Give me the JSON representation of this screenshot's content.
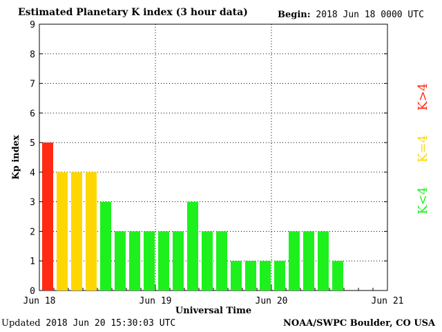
{
  "header": {
    "title": "Estimated Planetary K index (3 hour data)",
    "begin_label": "Begin:",
    "begin_value": "2018 Jun 18 0000 UTC"
  },
  "footer": {
    "updated_label": "Updated",
    "updated_value": "2018 Jun 20 15:30:03 UTC",
    "source": "NOAA/SWPC Boulder, CO USA"
  },
  "colors": {
    "high": "#ff2a14",
    "medium": "#ffd700",
    "low": "#1ef01e"
  },
  "chart_data": {
    "type": "bar",
    "xlabel": "Universal Time",
    "ylabel": "Kp index",
    "ylim": [
      0,
      9
    ],
    "yticks": [
      0,
      1,
      2,
      3,
      4,
      5,
      6,
      7,
      8,
      9
    ],
    "x_tick_labels": [
      "Jun 18",
      "Jun 19",
      "Jun 20",
      "Jun 21"
    ],
    "slots_per_day": 8,
    "values": [
      5,
      4,
      4,
      4,
      3,
      2,
      2,
      2,
      2,
      2,
      3,
      2,
      2,
      1,
      1,
      1,
      1,
      2,
      2,
      2,
      1
    ],
    "grid": true,
    "legend": [
      {
        "label": "K<4",
        "color": "#1ef01e"
      },
      {
        "label": "K=4",
        "color": "#ffd700"
      },
      {
        "label": "K>4",
        "color": "#ff2a14"
      }
    ],
    "legend_placement": "right"
  }
}
